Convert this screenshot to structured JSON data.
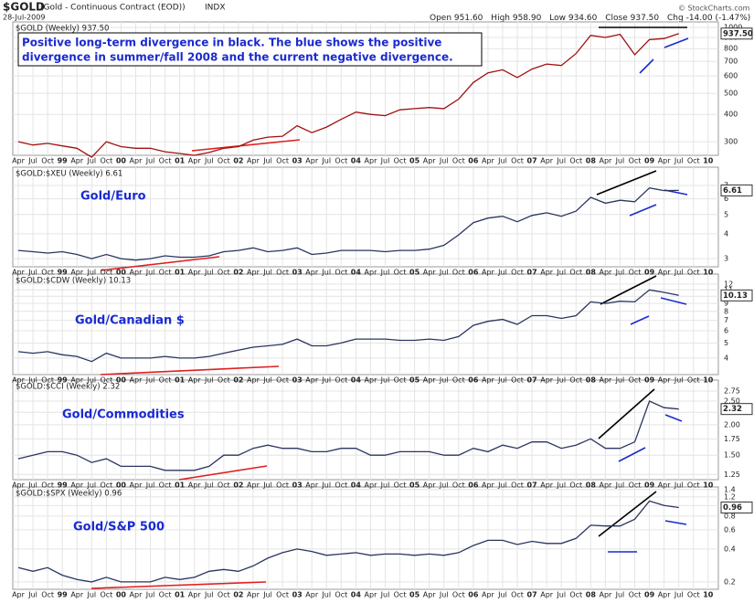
{
  "header": {
    "symbol": "$GOLD",
    "name": "(Gold - Continuous Contract (EOD))",
    "exchange": "INDX",
    "date": "28-Jul-2009",
    "stats": [
      {
        "label": "Open",
        "value": "951.60"
      },
      {
        "label": "High",
        "value": "958.90"
      },
      {
        "label": "Low",
        "value": "934.60"
      },
      {
        "label": "Close",
        "value": "937.50"
      },
      {
        "label": "Chg",
        "value": "-14.00 (-1.47%)"
      }
    ],
    "credit": "© StockCharts.com"
  },
  "chart_data": [
    {
      "type": "line",
      "title": "$GOLD (Weekly) 937.50",
      "annotation": [
        "Positive long-term divergence in black. The blue shows the positive",
        "divergence in summer/fall 2008 and the current negative divergence."
      ],
      "categories": [
        "Apr",
        "Jul",
        "Oct",
        "99",
        "Apr",
        "Jul",
        "Oct",
        "00",
        "Apr",
        "Jul",
        "Oct",
        "01",
        "Apr",
        "Jul",
        "Oct",
        "02",
        "Apr",
        "Jul",
        "Oct",
        "03",
        "Apr",
        "Jul",
        "Oct",
        "04",
        "Apr",
        "Jul",
        "Oct",
        "05",
        "Apr",
        "Jul",
        "Oct",
        "06",
        "Apr",
        "Jul",
        "Oct",
        "07",
        "Apr",
        "Jul",
        "Oct",
        "08",
        "Apr",
        "Jul",
        "Oct",
        "09",
        "Apr",
        "Jul",
        "Oct",
        "10"
      ],
      "values": [
        300,
        290,
        295,
        287,
        280,
        255,
        300,
        285,
        280,
        280,
        270,
        265,
        260,
        268,
        280,
        285,
        305,
        315,
        318,
        355,
        330,
        350,
        380,
        410,
        400,
        395,
        420,
        425,
        430,
        425,
        470,
        560,
        620,
        640,
        590,
        645,
        680,
        670,
        760,
        920,
        900,
        930,
        750,
        880,
        890,
        937.5,
        null,
        null
      ],
      "last_value_label": "937.50",
      "color": "#a01010",
      "log": true,
      "grid": true,
      "ylim": [
        260,
        1060
      ],
      "yticks": [
        300,
        400,
        500,
        600,
        700,
        800,
        900,
        1000
      ]
    },
    {
      "type": "line",
      "title": "$GOLD:$XEU (Weekly) 6.61",
      "label": "Gold/Euro",
      "categories": [
        "Apr",
        "Jul",
        "Oct",
        "99",
        "Apr",
        "Jul",
        "Oct",
        "00",
        "Apr",
        "Jul",
        "Oct",
        "01",
        "Apr",
        "Jul",
        "Oct",
        "02",
        "Apr",
        "Jul",
        "Oct",
        "03",
        "Apr",
        "Jul",
        "Oct",
        "04",
        "Apr",
        "Jul",
        "Oct",
        "05",
        "Apr",
        "Jul",
        "Oct",
        "06",
        "Apr",
        "Jul",
        "Oct",
        "07",
        "Apr",
        "Jul",
        "Oct",
        "08",
        "Apr",
        "Jul",
        "Oct",
        "09",
        "Apr",
        "Jul",
        "Oct",
        "10"
      ],
      "values": [
        3.3,
        3.25,
        3.2,
        3.25,
        3.15,
        3.0,
        3.15,
        3.0,
        2.95,
        3.0,
        3.1,
        3.05,
        3.05,
        3.1,
        3.25,
        3.3,
        3.4,
        3.25,
        3.3,
        3.4,
        3.15,
        3.2,
        3.3,
        3.3,
        3.3,
        3.25,
        3.3,
        3.3,
        3.35,
        3.5,
        3.95,
        4.55,
        4.8,
        4.9,
        4.6,
        4.95,
        5.1,
        4.9,
        5.2,
        6.1,
        5.7,
        5.9,
        5.8,
        6.8,
        6.6,
        6.61,
        null,
        null
      ],
      "last_value_label": "6.61",
      "color": "#2a3560",
      "log": true,
      "grid": true,
      "ylim": [
        2.73,
        8.65
      ],
      "yticks": [
        3,
        4,
        5,
        6,
        7
      ]
    },
    {
      "type": "line",
      "title": "$GOLD:$CDW (Weekly) 10.13",
      "label": "Gold/Canadian $",
      "categories": [
        "Apr",
        "Jul",
        "Oct",
        "99",
        "Apr",
        "Jul",
        "Oct",
        "00",
        "Apr",
        "Jul",
        "Oct",
        "01",
        "Apr",
        "Jul",
        "Oct",
        "02",
        "Apr",
        "Jul",
        "Oct",
        "03",
        "Apr",
        "Jul",
        "Oct",
        "04",
        "Apr",
        "Jul",
        "Oct",
        "05",
        "Apr",
        "Jul",
        "Oct",
        "06",
        "Apr",
        "Jul",
        "Oct",
        "07",
        "Apr",
        "Jul",
        "Oct",
        "08",
        "Apr",
        "Jul",
        "Oct",
        "09",
        "Apr",
        "Jul",
        "Oct",
        "10"
      ],
      "values": [
        4.4,
        4.3,
        4.4,
        4.2,
        4.1,
        3.8,
        4.3,
        4.0,
        4.0,
        4.0,
        4.1,
        4.0,
        4.0,
        4.1,
        4.3,
        4.5,
        4.7,
        4.8,
        4.9,
        5.3,
        4.8,
        4.8,
        5.0,
        5.3,
        5.3,
        5.3,
        5.2,
        5.2,
        5.3,
        5.2,
        5.5,
        6.5,
        6.9,
        7.1,
        6.6,
        7.5,
        7.5,
        7.2,
        7.5,
        9.2,
        9.0,
        9.3,
        9.2,
        11.0,
        10.6,
        10.13,
        null,
        null
      ],
      "last_value_label": "10.13",
      "color": "#2a3560",
      "log": true,
      "grid": true,
      "ylim": [
        3.13,
        13.9
      ],
      "yticks": [
        4,
        5,
        6,
        7,
        8,
        9,
        10,
        11,
        12
      ]
    },
    {
      "type": "line",
      "title": "$GOLD:$CCI (Weekly) 2.32",
      "label": "Gold/Commodities",
      "categories": [
        "Apr",
        "Jul",
        "Oct",
        "99",
        "Apr",
        "Jul",
        "Oct",
        "00",
        "Apr",
        "Jul",
        "Oct",
        "01",
        "Apr",
        "Jul",
        "Oct",
        "02",
        "Apr",
        "Jul",
        "Oct",
        "03",
        "Apr",
        "Jul",
        "Oct",
        "04",
        "Apr",
        "Jul",
        "Oct",
        "05",
        "Apr",
        "Jul",
        "Oct",
        "06",
        "Apr",
        "Jul",
        "Oct",
        "07",
        "Apr",
        "Jul",
        "Oct",
        "08",
        "Apr",
        "Jul",
        "Oct",
        "09",
        "Apr",
        "Jul",
        "Oct",
        "10"
      ],
      "values": [
        1.45,
        1.5,
        1.55,
        1.55,
        1.5,
        1.4,
        1.45,
        1.35,
        1.35,
        1.35,
        1.3,
        1.3,
        1.3,
        1.35,
        1.5,
        1.5,
        1.6,
        1.65,
        1.6,
        1.6,
        1.55,
        1.55,
        1.6,
        1.6,
        1.5,
        1.5,
        1.55,
        1.55,
        1.55,
        1.5,
        1.5,
        1.6,
        1.55,
        1.65,
        1.6,
        1.7,
        1.7,
        1.6,
        1.65,
        1.75,
        1.6,
        1.6,
        1.7,
        2.5,
        2.35,
        2.32,
        null,
        null
      ],
      "last_value_label": "2.32",
      "color": "#2a3560",
      "log": true,
      "grid": true,
      "ylim": [
        1.19,
        3.05
      ],
      "yticks": [
        1.25,
        {
          "value": 1.5,
          "label": "1.50"
        },
        1.75,
        {
          "value": 2,
          "label": "2.00"
        },
        2.25,
        {
          "value": 2.5,
          "label": "2.50"
        },
        2.75
      ]
    },
    {
      "type": "line",
      "title": "$GOLD:$SPX (Weekly) 0.96",
      "label": "Gold/S&P 500",
      "categories": [
        "Apr",
        "Jul",
        "Oct",
        "99",
        "Apr",
        "Jul",
        "Oct",
        "00",
        "Apr",
        "Jul",
        "Oct",
        "01",
        "Apr",
        "Jul",
        "Oct",
        "02",
        "Apr",
        "Jul",
        "Oct",
        "03",
        "Apr",
        "Jul",
        "Oct",
        "04",
        "Apr",
        "Jul",
        "Oct",
        "05",
        "Apr",
        "Jul",
        "Oct",
        "06",
        "Apr",
        "Jul",
        "Oct",
        "07",
        "Apr",
        "Jul",
        "Oct",
        "08",
        "Apr",
        "Jul",
        "Oct",
        "09",
        "Apr",
        "Jul",
        "Oct",
        "10"
      ],
      "values": [
        0.27,
        0.25,
        0.27,
        0.23,
        0.21,
        0.2,
        0.22,
        0.2,
        0.2,
        0.2,
        0.22,
        0.21,
        0.22,
        0.25,
        0.26,
        0.25,
        0.28,
        0.33,
        0.37,
        0.4,
        0.38,
        0.35,
        0.36,
        0.37,
        0.35,
        0.36,
        0.36,
        0.35,
        0.36,
        0.35,
        0.37,
        0.43,
        0.48,
        0.48,
        0.44,
        0.47,
        0.45,
        0.45,
        0.5,
        0.66,
        0.65,
        0.65,
        0.75,
        1.1,
        1.0,
        0.96,
        null,
        null
      ],
      "last_value_label": "0.96",
      "color": "#2a3560",
      "log": true,
      "grid": true,
      "ylim": [
        0.171,
        1.48
      ],
      "yticks": [
        0.2,
        0.4,
        0.6,
        0.8,
        1,
        1.2,
        1.4
      ]
    }
  ]
}
